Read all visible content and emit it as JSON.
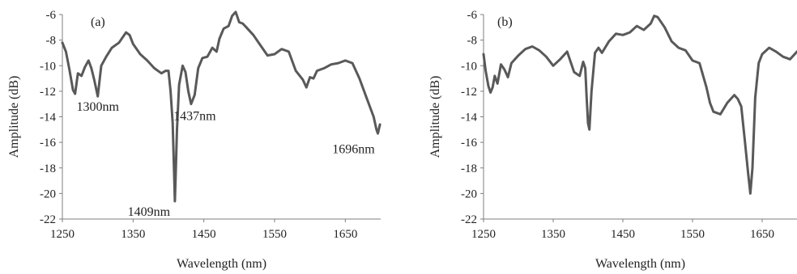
{
  "colors": {
    "series": "#595959",
    "axis": "#7f7f7f",
    "text": "#222222"
  },
  "chart_data": [
    {
      "type": "line",
      "panel_label": "(a)",
      "xlabel": "Wavelength (nm)",
      "ylabel": "Amplitude (dB)",
      "xlim": [
        1250,
        1700
      ],
      "ylim": [
        -22,
        -6
      ],
      "xticks": [
        1250,
        1350,
        1450,
        1550,
        1650
      ],
      "yticks": [
        -6,
        -8,
        -10,
        -12,
        -14,
        -16,
        -18,
        -20,
        -22
      ],
      "grid": false,
      "annotations": [
        {
          "text": "1300nm",
          "x": 1300,
          "y": -12.4
        },
        {
          "text": "1409nm",
          "x": 1409,
          "y": -20.6
        },
        {
          "text": "1437nm",
          "x": 1437,
          "y": -13.0
        },
        {
          "text": "1696nm",
          "x": 1696,
          "y": -15.2
        }
      ],
      "series": [
        {
          "x": [
            1250,
            1255,
            1260,
            1265,
            1268,
            1272,
            1277,
            1282,
            1287,
            1291,
            1295,
            1300,
            1305,
            1312,
            1320,
            1330,
            1340,
            1345,
            1350,
            1360,
            1370,
            1380,
            1390,
            1396,
            1400,
            1403,
            1406,
            1408,
            1409,
            1410,
            1412,
            1415,
            1420,
            1424,
            1428,
            1432,
            1437,
            1442,
            1448,
            1455,
            1462,
            1468,
            1472,
            1478,
            1485,
            1490,
            1495,
            1500,
            1505,
            1510,
            1520,
            1530,
            1540,
            1550,
            1560,
            1570,
            1580,
            1590,
            1595,
            1600,
            1605,
            1610,
            1620,
            1630,
            1640,
            1650,
            1660,
            1670,
            1680,
            1690,
            1694,
            1696,
            1699
          ],
          "y": [
            -8.2,
            -8.9,
            -10.3,
            -11.9,
            -12.2,
            -10.6,
            -10.8,
            -10.1,
            -9.6,
            -10.2,
            -11.1,
            -12.4,
            -10.0,
            -9.3,
            -8.6,
            -8.2,
            -7.4,
            -7.6,
            -8.3,
            -9.1,
            -9.6,
            -10.2,
            -10.6,
            -10.4,
            -10.4,
            -12.0,
            -14.5,
            -18.5,
            -20.6,
            -19.0,
            -15.0,
            -11.5,
            -10.0,
            -10.5,
            -12.0,
            -13.0,
            -12.3,
            -10.2,
            -9.4,
            -9.3,
            -8.6,
            -8.9,
            -7.9,
            -7.1,
            -6.9,
            -6.1,
            -5.8,
            -6.6,
            -6.7,
            -7.0,
            -7.6,
            -8.4,
            -9.2,
            -9.1,
            -8.7,
            -8.9,
            -10.4,
            -11.1,
            -11.7,
            -10.9,
            -11.0,
            -10.4,
            -10.2,
            -9.9,
            -9.8,
            -9.6,
            -9.8,
            -11.0,
            -12.5,
            -14.0,
            -15.0,
            -15.3,
            -14.6
          ]
        }
      ]
    },
    {
      "type": "line",
      "panel_label": "(b)",
      "xlabel": "Wavelength (nm)",
      "ylabel": "Amplitude (dB)",
      "xlim": [
        1250,
        1700
      ],
      "ylim": [
        -22,
        -6
      ],
      "xticks": [
        1250,
        1350,
        1450,
        1550,
        1650
      ],
      "yticks": [
        -6,
        -8,
        -10,
        -12,
        -14,
        -16,
        -18,
        -20,
        -22
      ],
      "grid": false,
      "series": [
        {
          "x": [
            1250,
            1253,
            1257,
            1260,
            1263,
            1266,
            1270,
            1275,
            1280,
            1285,
            1290,
            1300,
            1310,
            1320,
            1330,
            1340,
            1350,
            1360,
            1370,
            1380,
            1388,
            1393,
            1396,
            1398,
            1400,
            1402,
            1405,
            1410,
            1415,
            1420,
            1430,
            1440,
            1450,
            1460,
            1470,
            1480,
            1490,
            1495,
            1500,
            1510,
            1520,
            1530,
            1540,
            1550,
            1560,
            1570,
            1575,
            1580,
            1590,
            1600,
            1610,
            1615,
            1620,
            1625,
            1630,
            1633,
            1636,
            1640,
            1645,
            1650,
            1660,
            1670,
            1680,
            1690,
            1700
          ],
          "y": [
            -9.1,
            -10.4,
            -11.6,
            -12.1,
            -11.7,
            -10.8,
            -11.4,
            -9.9,
            -10.3,
            -10.9,
            -9.8,
            -9.2,
            -8.7,
            -8.5,
            -8.8,
            -9.3,
            -10.0,
            -9.5,
            -8.9,
            -10.5,
            -10.8,
            -9.7,
            -10.2,
            -12.5,
            -14.5,
            -15.0,
            -12.0,
            -9.0,
            -8.6,
            -9.0,
            -8.1,
            -7.5,
            -7.6,
            -7.4,
            -6.9,
            -7.2,
            -6.7,
            -6.1,
            -6.2,
            -7.0,
            -8.1,
            -8.6,
            -8.8,
            -9.6,
            -9.8,
            -11.7,
            -12.9,
            -13.6,
            -13.8,
            -12.9,
            -12.3,
            -12.6,
            -13.2,
            -15.8,
            -18.5,
            -20.0,
            -18.0,
            -12.5,
            -9.8,
            -9.1,
            -8.6,
            -8.9,
            -9.3,
            -9.5,
            -8.9
          ]
        }
      ]
    }
  ]
}
